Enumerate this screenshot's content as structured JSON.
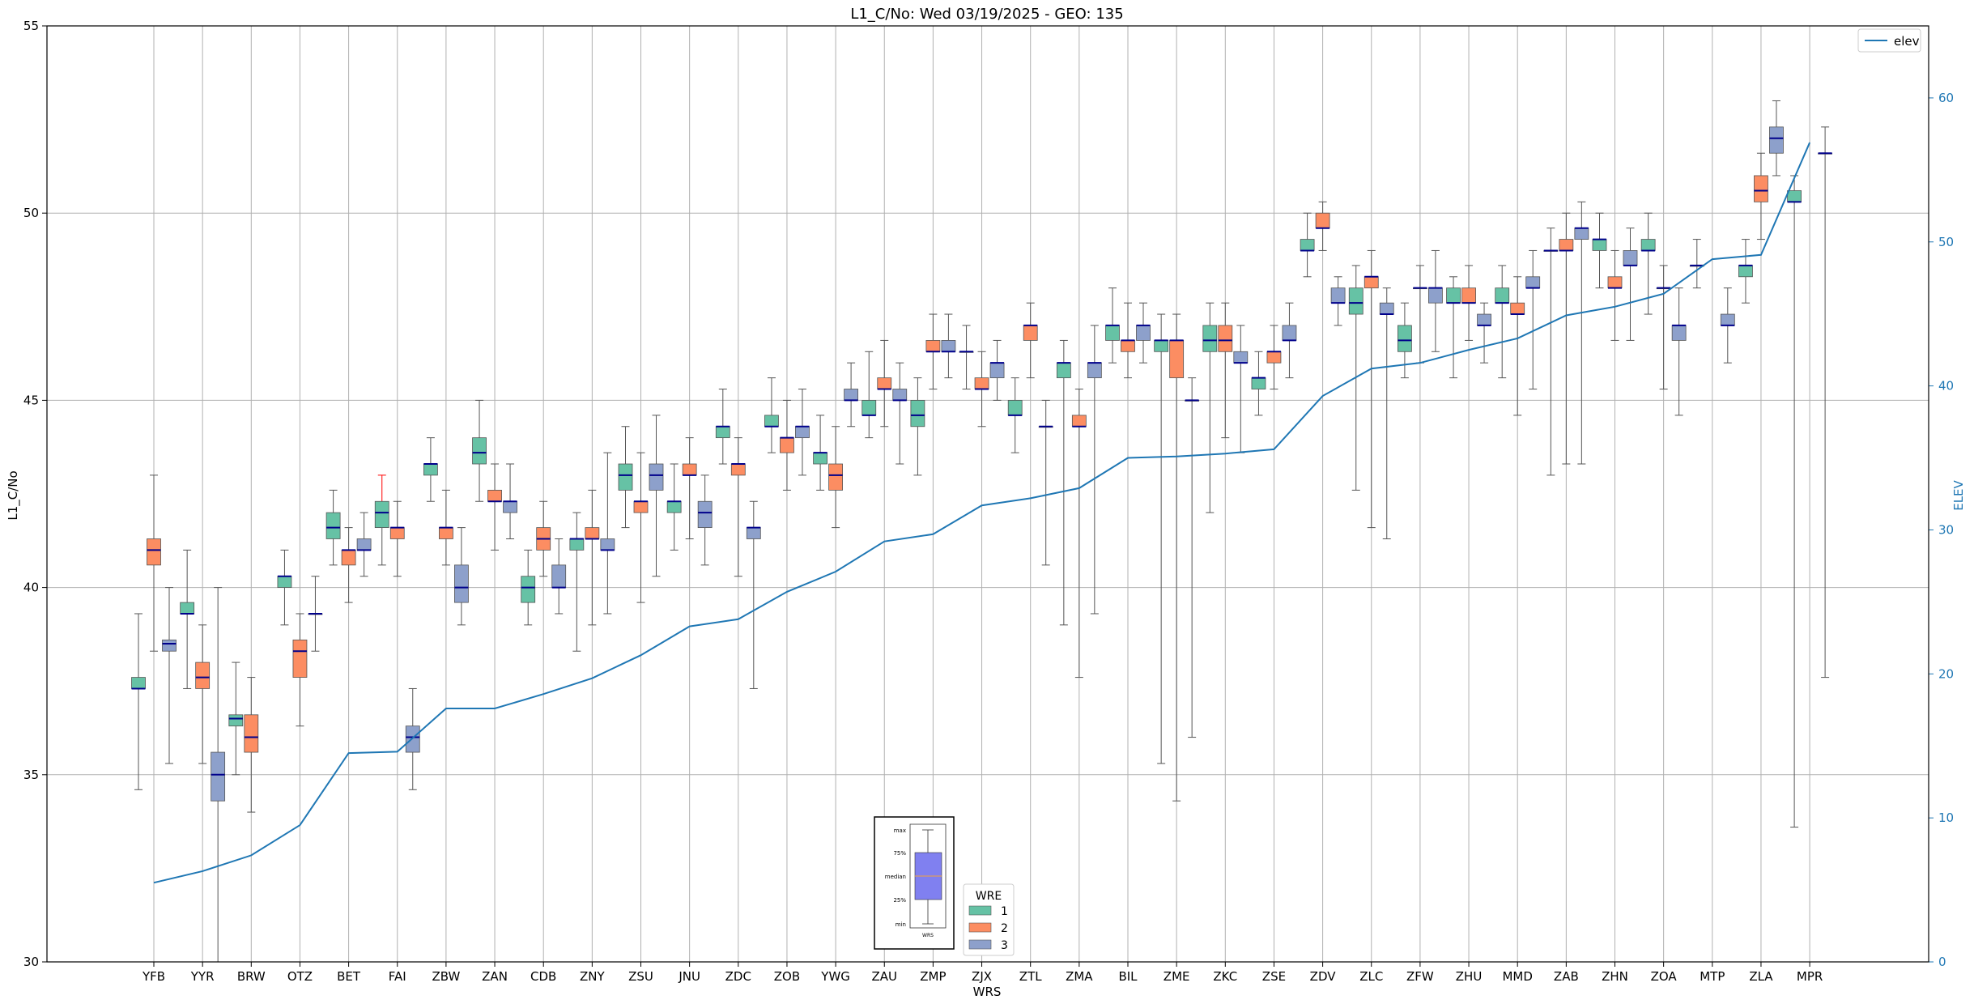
{
  "chart_data": {
    "type": "box",
    "title": "L1_C/No: Wed 03/19/2025 - GEO: 135",
    "xlabel": "WRS",
    "ylabel": "L1_C/No",
    "y2label": "ELEV",
    "ylim": [
      30,
      55
    ],
    "y2lim": [
      0,
      65
    ],
    "yticks": [
      "30",
      "35",
      "40",
      "45",
      "50",
      "55"
    ],
    "y2ticks": [
      "0",
      "10",
      "20",
      "30",
      "40",
      "50",
      "60"
    ],
    "grid": true,
    "legend": {
      "placement": "top-right",
      "label": "elev"
    },
    "wre_legend": {
      "title": "WRE",
      "items": [
        "1",
        "2",
        "3"
      ]
    },
    "colors": {
      "1": "#66c2a5",
      "2": "#fc8d62",
      "3": "#8da0cb",
      "median": "#00008b",
      "elev": "#1f77b4",
      "whisker": "#555555",
      "outlier_whisker": "#ff0000"
    },
    "inset": {
      "labels": [
        "max",
        "75%",
        "median",
        "25%",
        "min"
      ],
      "xlabel": "WRS",
      "color": "#8080f0"
    },
    "categories": [
      "YFB",
      "YYR",
      "BRW",
      "OTZ",
      "BET",
      "FAI",
      "ZBW",
      "ZAN",
      "CDB",
      "ZNY",
      "ZSU",
      "JNU",
      "ZDC",
      "ZOB",
      "YWG",
      "ZAU",
      "ZMP",
      "ZJX",
      "ZTL",
      "ZMA",
      "BIL",
      "ZME",
      "ZKC",
      "ZSE",
      "ZDV",
      "ZLC",
      "ZFW",
      "ZHU",
      "MMD",
      "ZAB",
      "ZHN",
      "ZOA",
      "MTP",
      "ZLA",
      "MPR"
    ],
    "elev": [
      5.5,
      6.3,
      7.4,
      9.5,
      14.5,
      14.6,
      17.6,
      17.6,
      18.6,
      19.7,
      21.3,
      23.3,
      23.8,
      25.7,
      27.1,
      29.2,
      29.7,
      31.7,
      32.2,
      32.9,
      35.0,
      35.1,
      35.3,
      35.6,
      39.3,
      41.2,
      41.6,
      42.5,
      43.3,
      44.9,
      45.5,
      46.4,
      48.8,
      49.1,
      56.9
    ],
    "boxes": [
      {
        "wrs": "YFB",
        "wre": 1,
        "min": 34.6,
        "q1": 37.3,
        "med": 37.3,
        "q3": 37.6,
        "max": 39.3
      },
      {
        "wrs": "YFB",
        "wre": 2,
        "min": 38.3,
        "q1": 40.6,
        "med": 41.0,
        "q3": 41.3,
        "max": 43.0
      },
      {
        "wrs": "YFB",
        "wre": 3,
        "min": 35.3,
        "q1": 38.3,
        "med": 38.5,
        "q3": 38.6,
        "max": 40.0
      },
      {
        "wrs": "YYR",
        "wre": 1,
        "min": 37.3,
        "q1": 39.3,
        "med": 39.3,
        "q3": 39.6,
        "max": 41.0
      },
      {
        "wrs": "YYR",
        "wre": 2,
        "min": 35.3,
        "q1": 37.3,
        "med": 37.6,
        "q3": 38.0,
        "max": 39.0
      },
      {
        "wrs": "YYR",
        "wre": 3,
        "min": 30.0,
        "q1": 34.3,
        "med": 35.0,
        "q3": 35.6,
        "max": 40.0
      },
      {
        "wrs": "BRW",
        "wre": 1,
        "min": 35.0,
        "q1": 36.3,
        "med": 36.5,
        "q3": 36.6,
        "max": 38.0
      },
      {
        "wrs": "BRW",
        "wre": 2,
        "min": 34.0,
        "q1": 35.6,
        "med": 36.0,
        "q3": 36.6,
        "max": 37.6
      },
      {
        "wrs": "OTZ",
        "wre": 1,
        "min": 39.0,
        "q1": 40.0,
        "med": 40.3,
        "q3": 40.3,
        "max": 41.0
      },
      {
        "wrs": "OTZ",
        "wre": 2,
        "min": 36.3,
        "q1": 37.6,
        "med": 38.3,
        "q3": 38.6,
        "max": 39.3
      },
      {
        "wrs": "OTZ",
        "wre": 3,
        "min": 38.3,
        "q1": 39.3,
        "med": 39.3,
        "q3": 39.3,
        "max": 40.3
      },
      {
        "wrs": "BET",
        "wre": 1,
        "min": 40.6,
        "q1": 41.3,
        "med": 41.6,
        "q3": 42.0,
        "max": 42.6
      },
      {
        "wrs": "BET",
        "wre": 2,
        "min": 39.6,
        "q1": 40.6,
        "med": 41.0,
        "q3": 41.0,
        "max": 41.6
      },
      {
        "wrs": "BET",
        "wre": 3,
        "min": 40.3,
        "q1": 41.0,
        "med": 41.0,
        "q3": 41.3,
        "max": 42.0
      },
      {
        "wrs": "FAI",
        "wre": 1,
        "min": 40.6,
        "q1": 41.6,
        "med": 42.0,
        "q3": 42.3,
        "max": 43.0,
        "red": true
      },
      {
        "wrs": "FAI",
        "wre": 2,
        "min": 40.3,
        "q1": 41.3,
        "med": 41.6,
        "q3": 41.6,
        "max": 42.3
      },
      {
        "wrs": "FAI",
        "wre": 3,
        "min": 34.6,
        "q1": 35.6,
        "med": 36.0,
        "q3": 36.3,
        "max": 37.3
      },
      {
        "wrs": "ZBW",
        "wre": 1,
        "min": 42.3,
        "q1": 43.0,
        "med": 43.3,
        "q3": 43.3,
        "max": 44.0
      },
      {
        "wrs": "ZBW",
        "wre": 2,
        "min": 40.6,
        "q1": 41.3,
        "med": 41.6,
        "q3": 41.6,
        "max": 42.6
      },
      {
        "wrs": "ZBW",
        "wre": 3,
        "min": 39.0,
        "q1": 39.6,
        "med": 40.0,
        "q3": 40.6,
        "max": 41.6
      },
      {
        "wrs": "ZAN",
        "wre": 1,
        "min": 42.3,
        "q1": 43.3,
        "med": 43.6,
        "q3": 44.0,
        "max": 45.0
      },
      {
        "wrs": "ZAN",
        "wre": 2,
        "min": 41.0,
        "q1": 42.3,
        "med": 42.3,
        "q3": 42.6,
        "max": 43.3
      },
      {
        "wrs": "ZAN",
        "wre": 3,
        "min": 41.3,
        "q1": 42.0,
        "med": 42.3,
        "q3": 42.3,
        "max": 43.3
      },
      {
        "wrs": "CDB",
        "wre": 1,
        "min": 39.0,
        "q1": 39.6,
        "med": 40.0,
        "q3": 40.3,
        "max": 41.0
      },
      {
        "wrs": "CDB",
        "wre": 2,
        "min": 40.3,
        "q1": 41.0,
        "med": 41.3,
        "q3": 41.6,
        "max": 42.3
      },
      {
        "wrs": "CDB",
        "wre": 3,
        "min": 39.3,
        "q1": 40.0,
        "med": 40.0,
        "q3": 40.6,
        "max": 41.3
      },
      {
        "wrs": "ZNY",
        "wre": 1,
        "min": 38.3,
        "q1": 41.0,
        "med": 41.3,
        "q3": 41.3,
        "max": 42.0
      },
      {
        "wrs": "ZNY",
        "wre": 2,
        "min": 39.0,
        "q1": 41.3,
        "med": 41.3,
        "q3": 41.6,
        "max": 42.6
      },
      {
        "wrs": "ZNY",
        "wre": 3,
        "min": 39.3,
        "q1": 41.0,
        "med": 41.0,
        "q3": 41.3,
        "max": 43.6
      },
      {
        "wrs": "ZSU",
        "wre": 1,
        "min": 41.6,
        "q1": 42.6,
        "med": 43.0,
        "q3": 43.3,
        "max": 44.3
      },
      {
        "wrs": "ZSU",
        "wre": 2,
        "min": 39.6,
        "q1": 42.0,
        "med": 42.3,
        "q3": 42.3,
        "max": 43.6
      },
      {
        "wrs": "ZSU",
        "wre": 3,
        "min": 40.3,
        "q1": 42.6,
        "med": 43.0,
        "q3": 43.3,
        "max": 44.6
      },
      {
        "wrs": "JNU",
        "wre": 1,
        "min": 41.0,
        "q1": 42.0,
        "med": 42.3,
        "q3": 42.3,
        "max": 43.3
      },
      {
        "wrs": "JNU",
        "wre": 2,
        "min": 41.3,
        "q1": 43.0,
        "med": 43.0,
        "q3": 43.3,
        "max": 44.0
      },
      {
        "wrs": "JNU",
        "wre": 3,
        "min": 40.6,
        "q1": 41.6,
        "med": 42.0,
        "q3": 42.3,
        "max": 43.0
      },
      {
        "wrs": "ZDC",
        "wre": 1,
        "min": 43.3,
        "q1": 44.0,
        "med": 44.3,
        "q3": 44.3,
        "max": 45.3
      },
      {
        "wrs": "ZDC",
        "wre": 2,
        "min": 40.3,
        "q1": 43.0,
        "med": 43.3,
        "q3": 43.3,
        "max": 44.0
      },
      {
        "wrs": "ZDC",
        "wre": 3,
        "min": 37.3,
        "q1": 41.3,
        "med": 41.6,
        "q3": 41.6,
        "max": 42.3
      },
      {
        "wrs": "ZOB",
        "wre": 1,
        "min": 43.6,
        "q1": 44.3,
        "med": 44.3,
        "q3": 44.6,
        "max": 45.6
      },
      {
        "wrs": "ZOB",
        "wre": 2,
        "min": 42.6,
        "q1": 43.6,
        "med": 44.0,
        "q3": 44.0,
        "max": 45.0
      },
      {
        "wrs": "ZOB",
        "wre": 3,
        "min": 43.0,
        "q1": 44.0,
        "med": 44.3,
        "q3": 44.3,
        "max": 45.3
      },
      {
        "wrs": "YWG",
        "wre": 1,
        "min": 42.6,
        "q1": 43.3,
        "med": 43.6,
        "q3": 43.6,
        "max": 44.6
      },
      {
        "wrs": "YWG",
        "wre": 2,
        "min": 41.6,
        "q1": 42.6,
        "med": 43.0,
        "q3": 43.3,
        "max": 44.3
      },
      {
        "wrs": "YWG",
        "wre": 3,
        "min": 44.3,
        "q1": 45.0,
        "med": 45.0,
        "q3": 45.3,
        "max": 46.0
      },
      {
        "wrs": "ZAU",
        "wre": 1,
        "min": 44.0,
        "q1": 44.6,
        "med": 44.6,
        "q3": 45.0,
        "max": 46.3
      },
      {
        "wrs": "ZAU",
        "wre": 2,
        "min": 44.3,
        "q1": 45.3,
        "med": 45.3,
        "q3": 45.6,
        "max": 46.6
      },
      {
        "wrs": "ZAU",
        "wre": 3,
        "min": 43.3,
        "q1": 45.0,
        "med": 45.0,
        "q3": 45.3,
        "max": 46.0
      },
      {
        "wrs": "ZMP",
        "wre": 1,
        "min": 43.0,
        "q1": 44.3,
        "med": 44.6,
        "q3": 45.0,
        "max": 45.6
      },
      {
        "wrs": "ZMP",
        "wre": 2,
        "min": 45.3,
        "q1": 46.3,
        "med": 46.3,
        "q3": 46.6,
        "max": 47.3
      },
      {
        "wrs": "ZMP",
        "wre": 3,
        "min": 45.6,
        "q1": 46.3,
        "med": 46.3,
        "q3": 46.6,
        "max": 47.3
      },
      {
        "wrs": "ZJX",
        "wre": 1,
        "min": 45.3,
        "q1": 46.3,
        "med": 46.3,
        "q3": 46.3,
        "max": 47.0
      },
      {
        "wrs": "ZJX",
        "wre": 2,
        "min": 44.3,
        "q1": 45.3,
        "med": 45.3,
        "q3": 45.6,
        "max": 46.3
      },
      {
        "wrs": "ZJX",
        "wre": 3,
        "min": 45.0,
        "q1": 45.6,
        "med": 46.0,
        "q3": 46.0,
        "max": 46.6
      },
      {
        "wrs": "ZTL",
        "wre": 1,
        "min": 43.6,
        "q1": 44.6,
        "med": 44.6,
        "q3": 45.0,
        "max": 45.6
      },
      {
        "wrs": "ZTL",
        "wre": 2,
        "min": 45.6,
        "q1": 46.6,
        "med": 47.0,
        "q3": 47.0,
        "max": 47.6
      },
      {
        "wrs": "ZTL",
        "wre": 3,
        "min": 40.6,
        "q1": 44.3,
        "med": 44.3,
        "q3": 44.3,
        "max": 45.0
      },
      {
        "wrs": "ZMA",
        "wre": 1,
        "min": 39.0,
        "q1": 45.6,
        "med": 46.0,
        "q3": 46.0,
        "max": 46.6
      },
      {
        "wrs": "ZMA",
        "wre": 2,
        "min": 37.6,
        "q1": 44.3,
        "med": 44.3,
        "q3": 44.6,
        "max": 45.3
      },
      {
        "wrs": "ZMA",
        "wre": 3,
        "min": 39.3,
        "q1": 45.6,
        "med": 46.0,
        "q3": 46.0,
        "max": 47.0
      },
      {
        "wrs": "BIL",
        "wre": 1,
        "min": 46.0,
        "q1": 46.6,
        "med": 47.0,
        "q3": 47.0,
        "max": 48.0
      },
      {
        "wrs": "BIL",
        "wre": 2,
        "min": 45.6,
        "q1": 46.3,
        "med": 46.6,
        "q3": 46.6,
        "max": 47.6
      },
      {
        "wrs": "BIL",
        "wre": 3,
        "min": 46.0,
        "q1": 46.6,
        "med": 47.0,
        "q3": 47.0,
        "max": 47.6
      },
      {
        "wrs": "ZME",
        "wre": 1,
        "min": 35.3,
        "q1": 46.3,
        "med": 46.6,
        "q3": 46.6,
        "max": 47.3
      },
      {
        "wrs": "ZME",
        "wre": 2,
        "min": 34.3,
        "q1": 45.6,
        "med": 46.6,
        "q3": 46.6,
        "max": 47.3
      },
      {
        "wrs": "ZME",
        "wre": 3,
        "min": 36.0,
        "q1": 45.0,
        "med": 45.0,
        "q3": 45.0,
        "max": 45.6
      },
      {
        "wrs": "ZKC",
        "wre": 1,
        "min": 42.0,
        "q1": 46.3,
        "med": 46.6,
        "q3": 47.0,
        "max": 47.6
      },
      {
        "wrs": "ZKC",
        "wre": 2,
        "min": 44.0,
        "q1": 46.3,
        "med": 46.6,
        "q3": 47.0,
        "max": 47.6
      },
      {
        "wrs": "ZKC",
        "wre": 3,
        "min": 43.6,
        "q1": 46.0,
        "med": 46.0,
        "q3": 46.3,
        "max": 47.0
      },
      {
        "wrs": "ZSE",
        "wre": 1,
        "min": 44.6,
        "q1": 45.3,
        "med": 45.6,
        "q3": 45.6,
        "max": 46.3
      },
      {
        "wrs": "ZSE",
        "wre": 2,
        "min": 45.3,
        "q1": 46.0,
        "med": 46.3,
        "q3": 46.3,
        "max": 47.0
      },
      {
        "wrs": "ZSE",
        "wre": 3,
        "min": 45.6,
        "q1": 46.6,
        "med": 46.6,
        "q3": 47.0,
        "max": 47.6
      },
      {
        "wrs": "ZDV",
        "wre": 1,
        "min": 48.3,
        "q1": 49.0,
        "med": 49.0,
        "q3": 49.3,
        "max": 50.0
      },
      {
        "wrs": "ZDV",
        "wre": 2,
        "min": 49.0,
        "q1": 49.6,
        "med": 49.6,
        "q3": 50.0,
        "max": 50.3
      },
      {
        "wrs": "ZDV",
        "wre": 3,
        "min": 47.0,
        "q1": 47.6,
        "med": 47.6,
        "q3": 48.0,
        "max": 48.3
      },
      {
        "wrs": "ZLC",
        "wre": 1,
        "min": 42.6,
        "q1": 47.3,
        "med": 47.6,
        "q3": 48.0,
        "max": 48.6
      },
      {
        "wrs": "ZLC",
        "wre": 2,
        "min": 41.6,
        "q1": 48.0,
        "med": 48.3,
        "q3": 48.3,
        "max": 49.0
      },
      {
        "wrs": "ZLC",
        "wre": 3,
        "min": 41.3,
        "q1": 47.3,
        "med": 47.3,
        "q3": 47.6,
        "max": 48.0
      },
      {
        "wrs": "ZFW",
        "wre": 1,
        "min": 45.6,
        "q1": 46.3,
        "med": 46.6,
        "q3": 47.0,
        "max": 47.6
      },
      {
        "wrs": "ZFW",
        "wre": 2,
        "min": 46.0,
        "q1": 48.0,
        "med": 48.0,
        "q3": 48.0,
        "max": 48.6
      },
      {
        "wrs": "ZFW",
        "wre": 3,
        "min": 46.3,
        "q1": 47.6,
        "med": 48.0,
        "q3": 48.0,
        "max": 49.0
      },
      {
        "wrs": "ZHU",
        "wre": 1,
        "min": 45.6,
        "q1": 47.6,
        "med": 47.6,
        "q3": 48.0,
        "max": 48.3
      },
      {
        "wrs": "ZHU",
        "wre": 2,
        "min": 46.6,
        "q1": 47.6,
        "med": 47.6,
        "q3": 48.0,
        "max": 48.6
      },
      {
        "wrs": "ZHU",
        "wre": 3,
        "min": 46.0,
        "q1": 47.0,
        "med": 47.0,
        "q3": 47.3,
        "max": 47.6
      },
      {
        "wrs": "MMD",
        "wre": 1,
        "min": 45.6,
        "q1": 47.6,
        "med": 47.6,
        "q3": 48.0,
        "max": 48.6
      },
      {
        "wrs": "MMD",
        "wre": 2,
        "min": 44.6,
        "q1": 47.3,
        "med": 47.3,
        "q3": 47.6,
        "max": 48.3
      },
      {
        "wrs": "MMD",
        "wre": 3,
        "min": 45.3,
        "q1": 48.0,
        "med": 48.0,
        "q3": 48.3,
        "max": 49.0
      },
      {
        "wrs": "ZAB",
        "wre": 1,
        "min": 43.0,
        "q1": 49.0,
        "med": 49.0,
        "q3": 49.0,
        "max": 49.6
      },
      {
        "wrs": "ZAB",
        "wre": 2,
        "min": 43.3,
        "q1": 49.0,
        "med": 49.0,
        "q3": 49.3,
        "max": 50.0
      },
      {
        "wrs": "ZAB",
        "wre": 3,
        "min": 43.3,
        "q1": 49.3,
        "med": 49.6,
        "q3": 49.6,
        "max": 50.3
      },
      {
        "wrs": "ZHN",
        "wre": 1,
        "min": 48.0,
        "q1": 49.0,
        "med": 49.3,
        "q3": 49.3,
        "max": 50.0
      },
      {
        "wrs": "ZHN",
        "wre": 2,
        "min": 46.6,
        "q1": 48.0,
        "med": 48.0,
        "q3": 48.3,
        "max": 49.0
      },
      {
        "wrs": "ZHN",
        "wre": 3,
        "min": 46.6,
        "q1": 48.6,
        "med": 48.6,
        "q3": 49.0,
        "max": 49.6
      },
      {
        "wrs": "ZOA",
        "wre": 1,
        "min": 47.3,
        "q1": 49.0,
        "med": 49.0,
        "q3": 49.3,
        "max": 50.0
      },
      {
        "wrs": "ZOA",
        "wre": 2,
        "min": 45.3,
        "q1": 48.0,
        "med": 48.0,
        "q3": 48.0,
        "max": 48.6
      },
      {
        "wrs": "ZOA",
        "wre": 3,
        "min": 44.6,
        "q1": 46.6,
        "med": 47.0,
        "q3": 47.0,
        "max": 48.0
      },
      {
        "wrs": "MTP",
        "wre": 1,
        "min": 48.0,
        "q1": 48.6,
        "med": 48.6,
        "q3": 48.6,
        "max": 49.3
      },
      {
        "wrs": "MTP",
        "wre": 3,
        "min": 46.0,
        "q1": 47.0,
        "med": 47.0,
        "q3": 47.3,
        "max": 48.0
      },
      {
        "wrs": "ZLA",
        "wre": 1,
        "min": 47.6,
        "q1": 48.3,
        "med": 48.6,
        "q3": 48.6,
        "max": 49.3
      },
      {
        "wrs": "ZLA",
        "wre": 2,
        "min": 49.3,
        "q1": 50.3,
        "med": 50.6,
        "q3": 51.0,
        "max": 51.6
      },
      {
        "wrs": "ZLA",
        "wre": 3,
        "min": 51.0,
        "q1": 51.6,
        "med": 52.0,
        "q3": 52.3,
        "max": 53.0
      },
      {
        "wrs": "MPR",
        "wre": 1,
        "min": 33.6,
        "q1": 50.3,
        "med": 50.3,
        "q3": 50.6,
        "max": 51.0
      },
      {
        "wrs": "MPR",
        "wre": 3,
        "min": 37.6,
        "q1": 51.6,
        "med": 51.6,
        "q3": 51.6,
        "max": 52.3
      }
    ]
  }
}
